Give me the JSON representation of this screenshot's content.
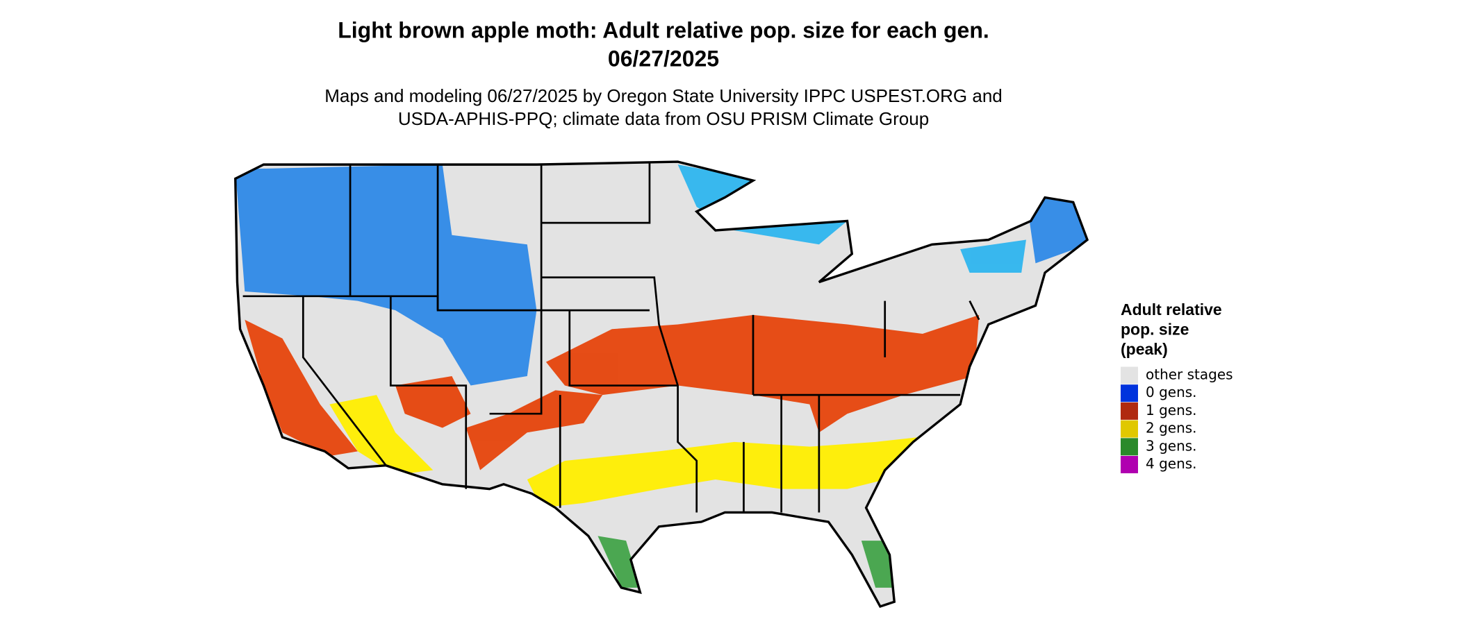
{
  "header": {
    "title": [
      "Light brown apple moth: Adult relative pop. size for each gen.",
      "06/27/2025"
    ],
    "subtitle": [
      "Maps and modeling 06/27/2025 by Oregon State University IPPC USPEST.ORG and",
      "USDA-APHIS-PPQ; climate data from OSU PRISM Climate Group"
    ]
  },
  "legend": {
    "title": [
      "Adult relative",
      "pop. size",
      "(peak)"
    ],
    "items": [
      {
        "label": "other stages",
        "color": "#e3e3e3"
      },
      {
        "label": "0 gens.",
        "color": "#0033dd"
      },
      {
        "label": "1 gens.",
        "color": "#b02a10"
      },
      {
        "label": "2 gens.",
        "color": "#e0c800"
      },
      {
        "label": "3 gens.",
        "color": "#2a8a2a"
      },
      {
        "label": "4 gens.",
        "color": "#b000b0"
      }
    ]
  }
}
